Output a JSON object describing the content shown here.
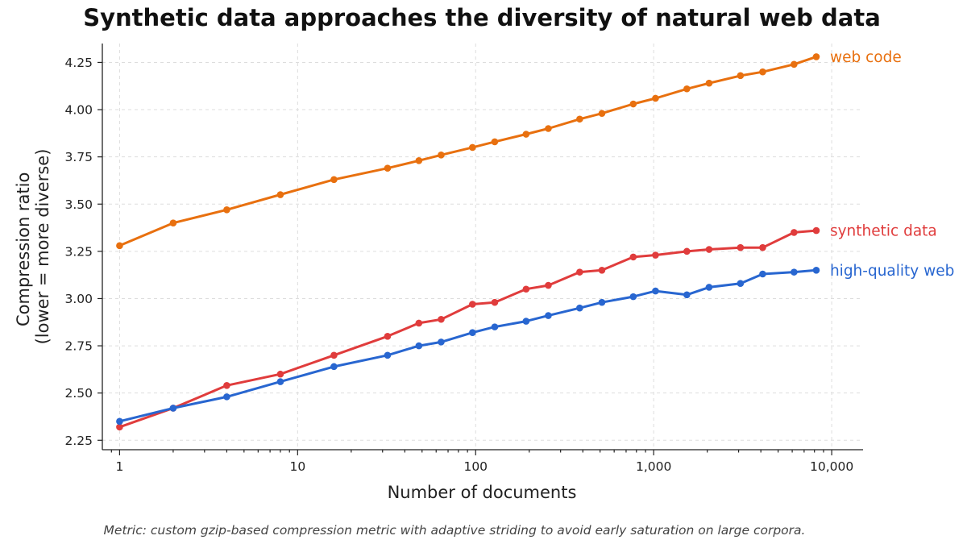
{
  "footnote": "Metric: custom gzip-based compression metric with adaptive striding to avoid early saturation on large corpora.",
  "chart_data": {
    "type": "line",
    "title": "Synthetic data approaches the diversity of natural web data",
    "xlabel": "Number of documents",
    "ylabel_lines": [
      "Compression ratio",
      "(lower = more diverse)"
    ],
    "xscale": "log",
    "xlim": [
      0.8,
      15000
    ],
    "ylim": [
      2.2,
      4.35
    ],
    "grid": true,
    "legend": "inline-right-labels",
    "x_ticks": [
      1,
      10,
      100,
      1000,
      10000
    ],
    "x_tick_labels": [
      "1",
      "10",
      "100",
      "1,000",
      "10,000"
    ],
    "y_ticks": [
      2.25,
      2.5,
      2.75,
      3.0,
      3.25,
      3.5,
      3.75,
      4.0,
      4.25
    ],
    "y_tick_labels": [
      "2.25",
      "2.50",
      "2.75",
      "3.00",
      "3.25",
      "3.50",
      "3.75",
      "4.00",
      "4.25"
    ],
    "series": [
      {
        "name": "web code",
        "color": "#e8700f",
        "x": [
          1,
          2,
          4,
          8,
          16,
          32,
          48,
          64,
          96,
          128,
          192,
          256,
          384,
          512,
          768,
          1024,
          1536,
          2048,
          3072,
          4096,
          6144,
          8192
        ],
        "y": [
          3.28,
          3.4,
          3.47,
          3.55,
          3.63,
          3.69,
          3.73,
          3.76,
          3.8,
          3.83,
          3.87,
          3.9,
          3.95,
          3.98,
          4.03,
          4.06,
          4.11,
          4.14,
          4.18,
          4.2,
          4.24,
          4.28
        ]
      },
      {
        "name": "synthetic data",
        "color": "#e03c3c",
        "x": [
          1,
          2,
          4,
          8,
          16,
          32,
          48,
          64,
          96,
          128,
          192,
          256,
          384,
          512,
          768,
          1024,
          1536,
          2048,
          3072,
          4096,
          6144,
          8192
        ],
        "y": [
          2.32,
          2.42,
          2.54,
          2.6,
          2.7,
          2.8,
          2.87,
          2.89,
          2.97,
          2.98,
          3.05,
          3.07,
          3.14,
          3.15,
          3.22,
          3.23,
          3.25,
          3.26,
          3.27,
          3.27,
          3.35,
          3.36
        ]
      },
      {
        "name": "high-quality web",
        "color": "#2866d0",
        "x": [
          1,
          2,
          4,
          8,
          16,
          32,
          48,
          64,
          96,
          128,
          192,
          256,
          384,
          512,
          768,
          1024,
          1536,
          2048,
          3072,
          4096,
          6144,
          8192
        ],
        "y": [
          2.35,
          2.42,
          2.48,
          2.56,
          2.64,
          2.7,
          2.75,
          2.77,
          2.82,
          2.85,
          2.88,
          2.91,
          2.95,
          2.98,
          3.01,
          3.04,
          3.02,
          3.06,
          3.08,
          3.13,
          3.14,
          3.15
        ]
      }
    ]
  }
}
